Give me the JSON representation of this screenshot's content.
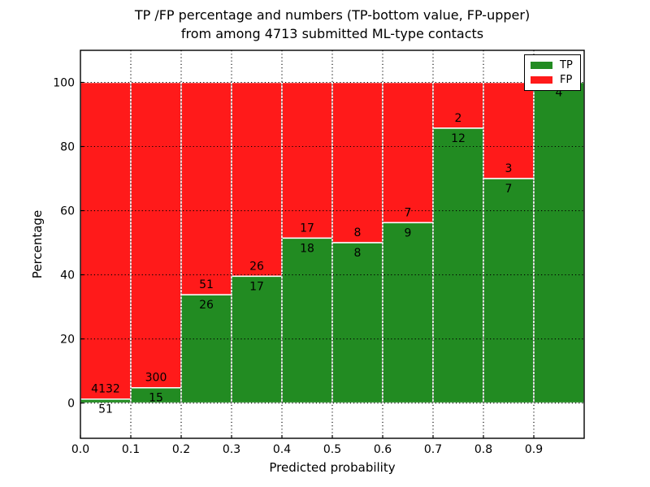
{
  "chart_data": {
    "type": "bar",
    "stacked": true,
    "title_lines": [
      "TP /FP percentage and numbers (TP-bottom value, FP-upper)",
      "from among 4713 submitted ML-type contacts"
    ],
    "title": "TP /FP percentage and numbers (TP-bottom value, FP-upper)\nfrom among 4713 submitted ML-type contacts",
    "xlabel": "Predicted probability",
    "ylabel": "Percentage",
    "total_contacts": 4713,
    "bin_width": 0.1,
    "x_tick_labels": [
      "0.0",
      "0.1",
      "0.2",
      "0.3",
      "0.4",
      "0.5",
      "0.6",
      "0.7",
      "0.8",
      "0.9"
    ],
    "y_ticks": [
      0,
      20,
      40,
      60,
      80,
      100
    ],
    "xlim": [
      0.0,
      1.0
    ],
    "ylim": [
      -11,
      110
    ],
    "grid": "dotted",
    "legend_position": "upper right",
    "series": [
      {
        "name": "TP",
        "color": "#228b22",
        "counts": [
          51,
          15,
          26,
          17,
          18,
          8,
          9,
          12,
          7,
          4
        ]
      },
      {
        "name": "FP",
        "color": "#ff1a1a",
        "counts": [
          4132,
          300,
          51,
          26,
          17,
          8,
          7,
          2,
          3,
          0
        ]
      }
    ],
    "bar_edge_color": "#ffffff",
    "grid_color": "#000000",
    "spine_color": "#000000"
  }
}
